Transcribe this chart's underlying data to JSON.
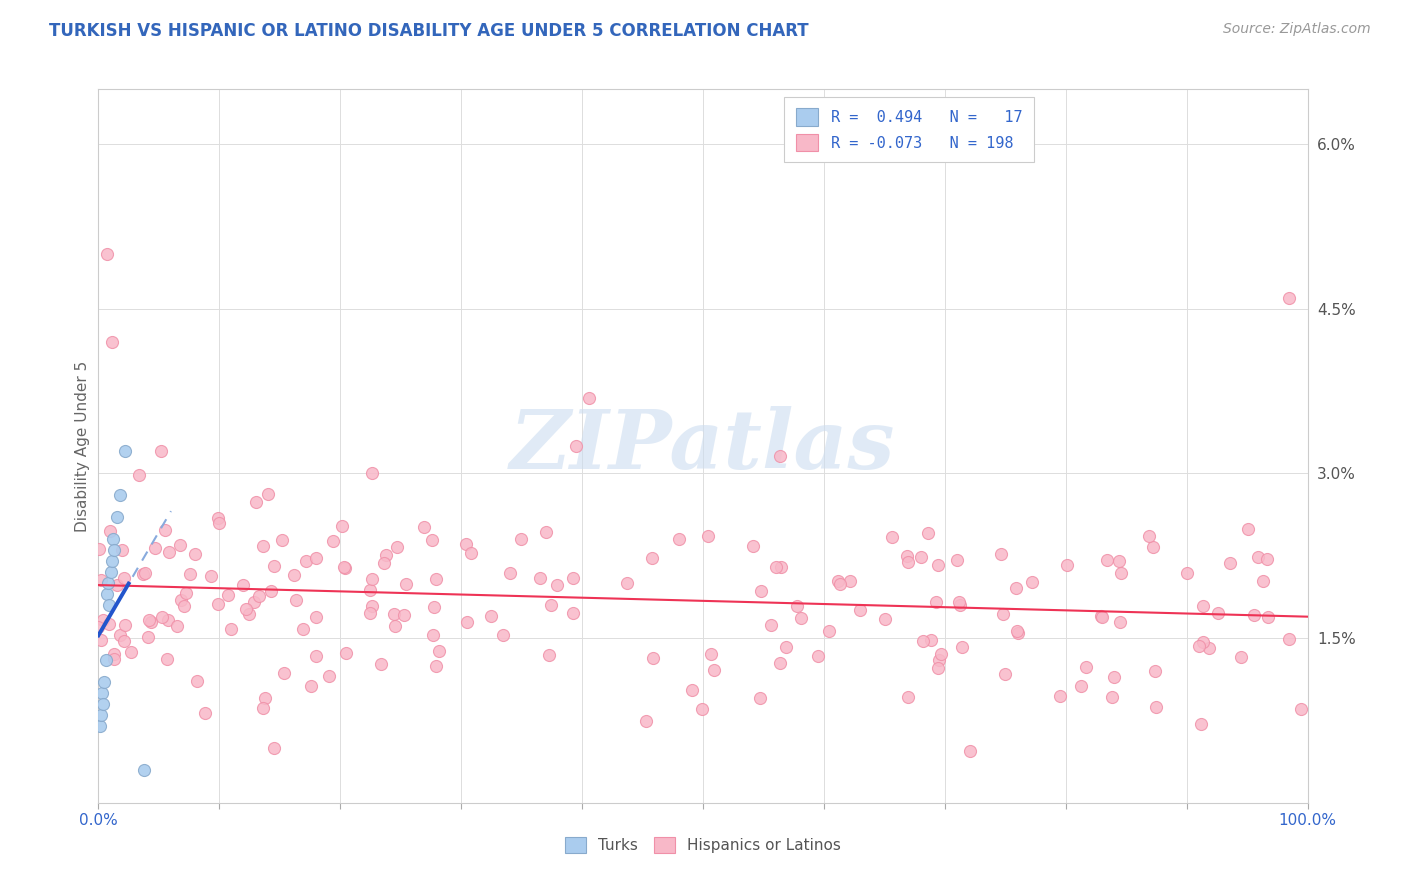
{
  "title": "TURKISH VS HISPANIC OR LATINO DISABILITY AGE UNDER 5 CORRELATION CHART",
  "source": "Source: ZipAtlas.com",
  "ylabel": "Disability Age Under 5",
  "xlim": [
    0.0,
    1.0
  ],
  "ylim": [
    0.0,
    0.065
  ],
  "yticks": [
    0.0,
    0.015,
    0.03,
    0.045,
    0.06
  ],
  "ytick_labels": [
    "",
    "1.5%",
    "3.0%",
    "4.5%",
    "6.0%"
  ],
  "title_color": "#3366bb",
  "watermark_text": "ZIPatlas",
  "watermark_color": "#ccddf0",
  "legend_line1": "R =  0.494   N =   17",
  "legend_line2": "R = -0.073   N = 198",
  "legend_text_color": "#3366cc",
  "blue_scatter_color": "#aaccee",
  "pink_scatter_color": "#f8b8c8",
  "trend_blue_solid": "#2255cc",
  "trend_blue_dashed": "#88aadd",
  "trend_pink": "#ee3355",
  "source_color": "#999999"
}
